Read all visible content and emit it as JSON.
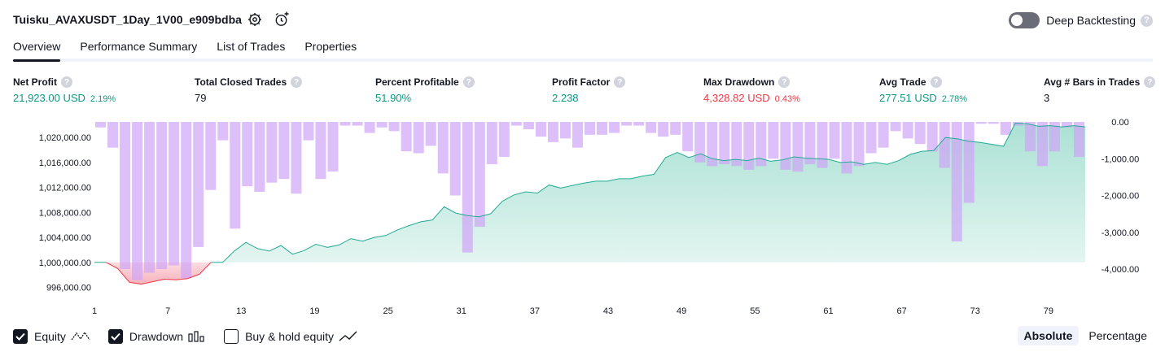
{
  "header": {
    "strategy_name": "Tuisku_AVAXUSDT_1Day_1V00_e909bdba",
    "settings_icon": "gear-icon",
    "add_alert_icon": "alarm-plus-icon",
    "deep_backtesting_label": "Deep Backtesting",
    "deep_backtesting_enabled": false,
    "help_glyph": "?"
  },
  "tabs": [
    {
      "label": "Overview",
      "active": true
    },
    {
      "label": "Performance Summary",
      "active": false
    },
    {
      "label": "List of Trades",
      "active": false
    },
    {
      "label": "Properties",
      "active": false
    }
  ],
  "metrics": [
    {
      "label": "Net Profit",
      "value": "21,923.00 USD",
      "pct": "2.19%",
      "tone": "pos"
    },
    {
      "label": "Total Closed Trades",
      "value": "79",
      "pct": "",
      "tone": "neu"
    },
    {
      "label": "Percent Profitable",
      "value": "51.90%",
      "pct": "",
      "tone": "pos"
    },
    {
      "label": "Profit Factor",
      "value": "2.238",
      "pct": "",
      "tone": "pos"
    },
    {
      "label": "Max Drawdown",
      "value": "4,328.82 USD",
      "pct": "0.43%",
      "tone": "neg"
    },
    {
      "label": "Avg Trade",
      "value": "277.51 USD",
      "pct": "2.78%",
      "tone": "pos"
    },
    {
      "label": "Avg # Bars in Trades",
      "value": "3",
      "pct": "",
      "tone": "neu"
    }
  ],
  "chart_data": {
    "type": "area",
    "x_ticks": [
      "1",
      "7",
      "13",
      "19",
      "25",
      "31",
      "37",
      "43",
      "49",
      "55",
      "61",
      "67",
      "73",
      "79"
    ],
    "left_axis": {
      "ticks": [
        "1,020,000.00",
        "1,016,000.00",
        "1,012,000.00",
        "1,008,000.00",
        "1,004,000.00",
        "1,000,000.00",
        "996,000.00"
      ],
      "ylim": [
        994500,
        1022500
      ],
      "baseline": 1000000
    },
    "right_axis": {
      "ticks": [
        "0.00",
        "-1,000.00",
        "-2,000.00",
        "-3,000.00",
        "-4,000.00"
      ],
      "ylim": [
        -4750,
        0
      ]
    },
    "equity": [
      1000000,
      1000000,
      999000,
      996800,
      996500,
      996900,
      997300,
      997200,
      997400,
      998100,
      1000000,
      1000000,
      1001800,
      1003200,
      1002200,
      1001800,
      1002700,
      1001300,
      1001900,
      1002900,
      1002400,
      1002800,
      1003800,
      1003400,
      1004000,
      1004300,
      1005200,
      1005900,
      1006500,
      1006800,
      1008900,
      1007900,
      1007500,
      1007300,
      1007800,
      1009800,
      1010800,
      1011300,
      1011100,
      1012400,
      1011900,
      1012300,
      1012700,
      1013000,
      1013000,
      1013400,
      1013400,
      1013800,
      1014100,
      1016800,
      1017600,
      1016800,
      1017400,
      1016600,
      1016300,
      1016500,
      1016300,
      1016700,
      1016200,
      1016400,
      1016900,
      1016700,
      1016600,
      1016500,
      1016000,
      1016100,
      1015700,
      1016000,
      1015700,
      1016300,
      1017300,
      1017800,
      1017900,
      1020000,
      1019800,
      1019400,
      1019200,
      1018900,
      1018600,
      1022300,
      1022200,
      1021800,
      1021900,
      1021700,
      1021900,
      1021700
    ],
    "drawdown": [
      -150,
      -700,
      -4000,
      -4300,
      -4100,
      -4000,
      -3900,
      -4250,
      -3400,
      -1850,
      -500,
      -2900,
      -1750,
      -1900,
      -1650,
      -1550,
      -1950,
      -500,
      -1550,
      -1350,
      -100,
      -100,
      -300,
      -150,
      -250,
      -800,
      -850,
      -650,
      -1400,
      -2000,
      -3550,
      -2850,
      -1150,
      -950,
      -100,
      -200,
      -400,
      -550,
      -450,
      -700,
      -350,
      -350,
      -300,
      -100,
      -100,
      -300,
      -400,
      -350,
      -800,
      -1100,
      -1200,
      -1150,
      -1200,
      -1300,
      -1200,
      -1000,
      -1300,
      -1350,
      -1150,
      -1250,
      -1000,
      -1400,
      -1200,
      -850,
      -700,
      -250,
      -450,
      -600,
      -800,
      -1250,
      -3250,
      -2200,
      -50,
      -50,
      -350,
      -100,
      -800,
      -1200,
      -800,
      -150,
      -950
    ]
  },
  "legend": [
    {
      "label": "Equity",
      "checked": true,
      "icon": "equity-line-icon"
    },
    {
      "label": "Drawdown",
      "checked": true,
      "icon": "bars-icon"
    },
    {
      "label": "Buy & hold equity",
      "checked": false,
      "icon": "trend-line-icon"
    }
  ],
  "view_modes": [
    {
      "label": "Absolute",
      "active": true
    },
    {
      "label": "Percentage",
      "active": false
    }
  ],
  "colors": {
    "equity_line": "#22ab94",
    "equity_fill": "#8fd7c6",
    "equity_loss_line": "#f23645",
    "equity_loss_fill": "#f7a9b4",
    "drawdown_bar": "#cfa4f7",
    "positive": "#089981",
    "negative": "#f23645"
  }
}
